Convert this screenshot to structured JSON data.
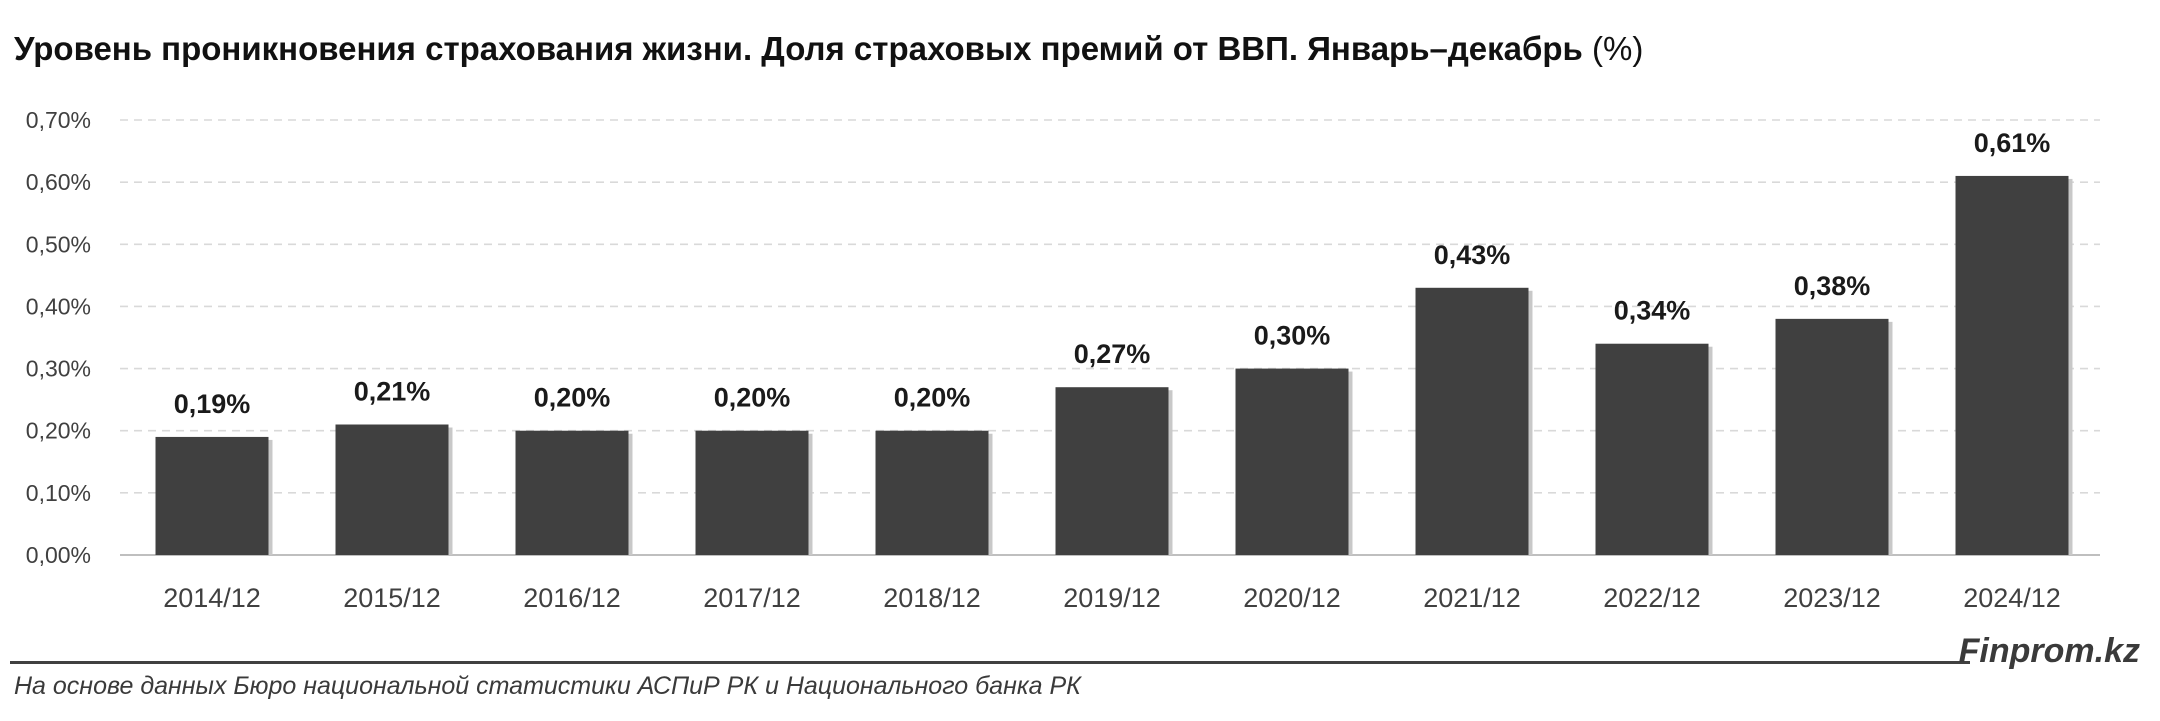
{
  "header": {
    "title": "Уровень проникновения страхования жизни. Доля страховых премий от ВВП. Январь–декабрь",
    "title_unit": "(%)"
  },
  "chart_data": {
    "type": "bar",
    "title": "Уровень проникновения страхования жизни. Доля страховых премий от ВВП. Январь–декабрь (%)",
    "categories": [
      "2014/12",
      "2015/12",
      "2016/12",
      "2017/12",
      "2018/12",
      "2019/12",
      "2020/12",
      "2021/12",
      "2022/12",
      "2023/12",
      "2024/12"
    ],
    "values": [
      0.19,
      0.21,
      0.2,
      0.2,
      0.2,
      0.27,
      0.3,
      0.43,
      0.34,
      0.38,
      0.61
    ],
    "data_labels": [
      "0,19%",
      "0,21%",
      "0,20%",
      "0,20%",
      "0,20%",
      "0,27%",
      "0,30%",
      "0,43%",
      "0,34%",
      "0,38%",
      "0,61%"
    ],
    "ylim": [
      0,
      0.7
    ],
    "yticks": [
      0,
      0.1,
      0.2,
      0.3,
      0.4,
      0.5,
      0.6,
      0.7
    ],
    "ytick_labels": [
      "0,00%",
      "0,10%",
      "0,20%",
      "0,30%",
      "0,40%",
      "0,50%",
      "0,60%",
      "0,70%"
    ],
    "xlabel": "",
    "ylabel": "",
    "grid": true,
    "bar_color": "#404040",
    "grid_color": "#d9d9d9"
  },
  "footer": {
    "source": "На основе данных Бюро национальной статистики АСПиР РК и Национального банка РК",
    "brand": "Finprom.kz"
  }
}
